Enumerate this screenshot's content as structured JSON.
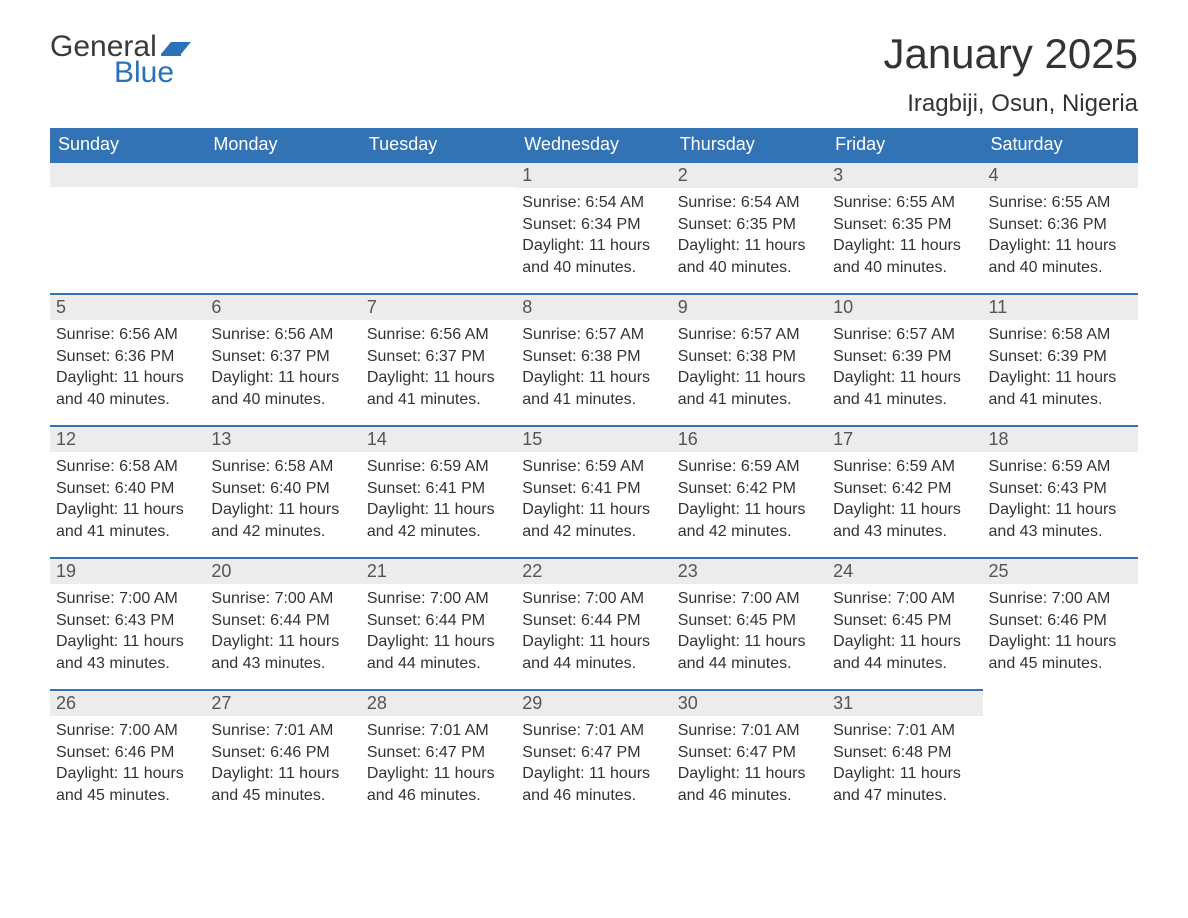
{
  "brand": {
    "word1": "General",
    "word2": "Blue",
    "flag_color": "#2a71b8"
  },
  "header": {
    "month_title": "January 2025",
    "location": "Iragbiji, Osun, Nigeria"
  },
  "colors": {
    "header_bg": "#3173b5",
    "header_text": "#ffffff",
    "daynum_bg": "#ececec",
    "daynum_border": "#3173b5",
    "body_text": "#333333",
    "page_bg": "#ffffff"
  },
  "weekday_labels": [
    "Sunday",
    "Monday",
    "Tuesday",
    "Wednesday",
    "Thursday",
    "Friday",
    "Saturday"
  ],
  "labels": {
    "sunrise": "Sunrise:",
    "sunset": "Sunset:",
    "daylight_prefix": "Daylight:",
    "daylight_hours_word": "hours",
    "daylight_and": "and",
    "daylight_minutes_word": "minutes."
  },
  "weeks": [
    [
      null,
      null,
      null,
      {
        "day": 1,
        "sunrise": "6:54 AM",
        "sunset": "6:34 PM",
        "dl_h": 11,
        "dl_m": 40
      },
      {
        "day": 2,
        "sunrise": "6:54 AM",
        "sunset": "6:35 PM",
        "dl_h": 11,
        "dl_m": 40
      },
      {
        "day": 3,
        "sunrise": "6:55 AM",
        "sunset": "6:35 PM",
        "dl_h": 11,
        "dl_m": 40
      },
      {
        "day": 4,
        "sunrise": "6:55 AM",
        "sunset": "6:36 PM",
        "dl_h": 11,
        "dl_m": 40
      }
    ],
    [
      {
        "day": 5,
        "sunrise": "6:56 AM",
        "sunset": "6:36 PM",
        "dl_h": 11,
        "dl_m": 40
      },
      {
        "day": 6,
        "sunrise": "6:56 AM",
        "sunset": "6:37 PM",
        "dl_h": 11,
        "dl_m": 40
      },
      {
        "day": 7,
        "sunrise": "6:56 AM",
        "sunset": "6:37 PM",
        "dl_h": 11,
        "dl_m": 41
      },
      {
        "day": 8,
        "sunrise": "6:57 AM",
        "sunset": "6:38 PM",
        "dl_h": 11,
        "dl_m": 41
      },
      {
        "day": 9,
        "sunrise": "6:57 AM",
        "sunset": "6:38 PM",
        "dl_h": 11,
        "dl_m": 41
      },
      {
        "day": 10,
        "sunrise": "6:57 AM",
        "sunset": "6:39 PM",
        "dl_h": 11,
        "dl_m": 41
      },
      {
        "day": 11,
        "sunrise": "6:58 AM",
        "sunset": "6:39 PM",
        "dl_h": 11,
        "dl_m": 41
      }
    ],
    [
      {
        "day": 12,
        "sunrise": "6:58 AM",
        "sunset": "6:40 PM",
        "dl_h": 11,
        "dl_m": 41
      },
      {
        "day": 13,
        "sunrise": "6:58 AM",
        "sunset": "6:40 PM",
        "dl_h": 11,
        "dl_m": 42
      },
      {
        "day": 14,
        "sunrise": "6:59 AM",
        "sunset": "6:41 PM",
        "dl_h": 11,
        "dl_m": 42
      },
      {
        "day": 15,
        "sunrise": "6:59 AM",
        "sunset": "6:41 PM",
        "dl_h": 11,
        "dl_m": 42
      },
      {
        "day": 16,
        "sunrise": "6:59 AM",
        "sunset": "6:42 PM",
        "dl_h": 11,
        "dl_m": 42
      },
      {
        "day": 17,
        "sunrise": "6:59 AM",
        "sunset": "6:42 PM",
        "dl_h": 11,
        "dl_m": 43
      },
      {
        "day": 18,
        "sunrise": "6:59 AM",
        "sunset": "6:43 PM",
        "dl_h": 11,
        "dl_m": 43
      }
    ],
    [
      {
        "day": 19,
        "sunrise": "7:00 AM",
        "sunset": "6:43 PM",
        "dl_h": 11,
        "dl_m": 43
      },
      {
        "day": 20,
        "sunrise": "7:00 AM",
        "sunset": "6:44 PM",
        "dl_h": 11,
        "dl_m": 43
      },
      {
        "day": 21,
        "sunrise": "7:00 AM",
        "sunset": "6:44 PM",
        "dl_h": 11,
        "dl_m": 44
      },
      {
        "day": 22,
        "sunrise": "7:00 AM",
        "sunset": "6:44 PM",
        "dl_h": 11,
        "dl_m": 44
      },
      {
        "day": 23,
        "sunrise": "7:00 AM",
        "sunset": "6:45 PM",
        "dl_h": 11,
        "dl_m": 44
      },
      {
        "day": 24,
        "sunrise": "7:00 AM",
        "sunset": "6:45 PM",
        "dl_h": 11,
        "dl_m": 44
      },
      {
        "day": 25,
        "sunrise": "7:00 AM",
        "sunset": "6:46 PM",
        "dl_h": 11,
        "dl_m": 45
      }
    ],
    [
      {
        "day": 26,
        "sunrise": "7:00 AM",
        "sunset": "6:46 PM",
        "dl_h": 11,
        "dl_m": 45
      },
      {
        "day": 27,
        "sunrise": "7:01 AM",
        "sunset": "6:46 PM",
        "dl_h": 11,
        "dl_m": 45
      },
      {
        "day": 28,
        "sunrise": "7:01 AM",
        "sunset": "6:47 PM",
        "dl_h": 11,
        "dl_m": 46
      },
      {
        "day": 29,
        "sunrise": "7:01 AM",
        "sunset": "6:47 PM",
        "dl_h": 11,
        "dl_m": 46
      },
      {
        "day": 30,
        "sunrise": "7:01 AM",
        "sunset": "6:47 PM",
        "dl_h": 11,
        "dl_m": 46
      },
      {
        "day": 31,
        "sunrise": "7:01 AM",
        "sunset": "6:48 PM",
        "dl_h": 11,
        "dl_m": 47
      },
      null
    ]
  ]
}
